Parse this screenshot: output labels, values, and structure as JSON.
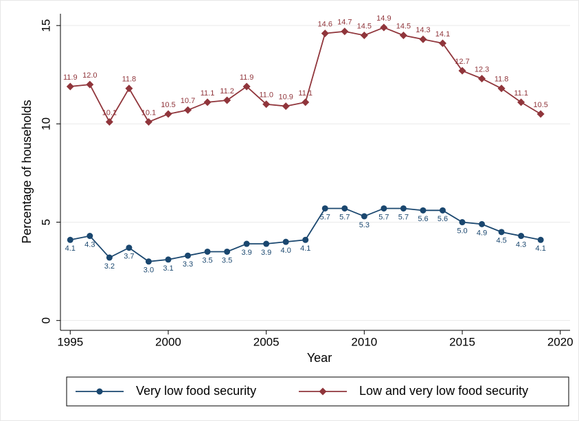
{
  "chart_data": {
    "type": "line",
    "xlabel": "Year",
    "ylabel": "Percentage of households",
    "x": [
      1995,
      1996,
      1997,
      1998,
      1999,
      2000,
      2001,
      2002,
      2003,
      2004,
      2005,
      2006,
      2007,
      2008,
      2009,
      2010,
      2011,
      2012,
      2013,
      2014,
      2015,
      2016,
      2017,
      2018,
      2019
    ],
    "series": [
      {
        "name": "Very low food security",
        "color": "#1a476f",
        "marker": "circle",
        "label_position": "below",
        "values": [
          4.1,
          4.3,
          3.2,
          3.7,
          3.0,
          3.1,
          3.3,
          3.5,
          3.5,
          3.9,
          3.9,
          4.0,
          4.1,
          5.7,
          5.7,
          5.3,
          5.7,
          5.7,
          5.6,
          5.6,
          5.0,
          4.9,
          4.5,
          4.3,
          4.1
        ],
        "value_labels": [
          "4.1",
          "4.3",
          "3.2",
          "3.7",
          "3.0",
          "3.1",
          "3.3",
          "3.5",
          "3.5",
          "3.9",
          "3.9",
          "4.0",
          "4.1",
          "5.7",
          "5.7",
          "5.3",
          "5.7",
          "5.7",
          "5.6",
          "5.6",
          "5.0",
          "4.9",
          "4.5",
          "4.3",
          "4.1"
        ]
      },
      {
        "name": "Low and very low food security",
        "color": "#90353b",
        "marker": "diamond",
        "label_position": "above",
        "values": [
          11.9,
          12.0,
          10.1,
          11.8,
          10.1,
          10.5,
          10.7,
          11.1,
          11.2,
          11.9,
          11.0,
          10.9,
          11.1,
          14.6,
          14.7,
          14.5,
          14.9,
          14.5,
          14.3,
          14.1,
          12.7,
          12.3,
          11.8,
          11.1,
          10.5
        ],
        "value_labels": [
          "11.9",
          "12.0",
          "10.1",
          "11.8",
          "10.1",
          "10.5",
          "10.7",
          "11.1",
          "11.2",
          "11.9",
          "11.0",
          "10.9",
          "11.1",
          "14.6",
          "14.7",
          "14.5",
          "14.9",
          "14.5",
          "14.3",
          "14.1",
          "12.7",
          "12.3",
          "11.8",
          "11.1",
          "10.5"
        ]
      }
    ],
    "xlim": [
      1994.5,
      2020.5
    ],
    "xticks": [
      1995,
      2000,
      2005,
      2010,
      2015,
      2020
    ],
    "ylim": [
      -0.5,
      15.6
    ],
    "yticks": [
      0,
      5,
      10,
      15
    ],
    "grid": true,
    "legend": "bottom"
  }
}
